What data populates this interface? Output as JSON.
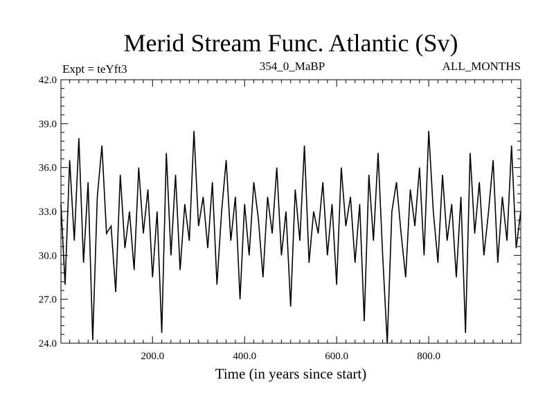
{
  "chart_data": {
    "type": "line",
    "title": "Merid Stream Func. Atlantic (Sv)",
    "header_left": "Expt = teYft3",
    "header_center": "354_0_MaBP",
    "header_right": "ALL_MONTHS",
    "xlabel": "Time (in years since start)",
    "ylabel": "",
    "xlim": [
      1,
      1000
    ],
    "ylim": [
      24.0,
      42.0
    ],
    "x_ticks": [
      200.0,
      400.0,
      600.0,
      800.0
    ],
    "x_tick_labels": [
      "200.0",
      "400.0",
      "600.0",
      "800.0"
    ],
    "y_ticks": [
      24.0,
      27.0,
      30.0,
      33.0,
      36.0,
      39.0,
      42.0
    ],
    "y_tick_labels": [
      "24.0",
      "27.0",
      "30.0",
      "33.0",
      "36.0",
      "39.0",
      "42.0"
    ],
    "grid": false,
    "series": [
      {
        "color": "#000000",
        "x": [
          1,
          10,
          20,
          30,
          40,
          50,
          60,
          70,
          80,
          90,
          100,
          110,
          120,
          130,
          140,
          150,
          160,
          170,
          180,
          190,
          200,
          210,
          220,
          230,
          240,
          250,
          260,
          270,
          280,
          290,
          300,
          310,
          320,
          330,
          340,
          350,
          360,
          370,
          380,
          390,
          400,
          410,
          420,
          430,
          440,
          450,
          460,
          470,
          480,
          490,
          500,
          510,
          520,
          530,
          540,
          550,
          560,
          570,
          580,
          590,
          600,
          610,
          620,
          630,
          640,
          650,
          660,
          670,
          680,
          690,
          700,
          710,
          720,
          730,
          740,
          750,
          760,
          770,
          780,
          790,
          800,
          810,
          820,
          830,
          840,
          850,
          860,
          870,
          880,
          890,
          900,
          910,
          920,
          930,
          940,
          950,
          960,
          970,
          980,
          990,
          1000
        ],
        "y": [
          33.5,
          28.0,
          36.5,
          31.0,
          38.0,
          29.5,
          35.0,
          24.2,
          34.0,
          37.5,
          31.5,
          32.0,
          27.5,
          35.5,
          30.5,
          33.0,
          29.0,
          36.0,
          31.5,
          34.5,
          28.5,
          33.0,
          24.7,
          37.0,
          30.0,
          35.5,
          29.0,
          33.5,
          31.0,
          38.5,
          32.0,
          34.0,
          30.5,
          35.0,
          28.0,
          33.0,
          36.5,
          31.0,
          34.0,
          27.0,
          33.5,
          30.0,
          35.0,
          32.5,
          28.5,
          34.0,
          31.5,
          36.0,
          30.0,
          33.0,
          26.5,
          34.5,
          31.0,
          37.5,
          29.5,
          33.0,
          31.5,
          35.0,
          30.0,
          33.5,
          28.0,
          36.0,
          32.0,
          34.0,
          29.5,
          33.5,
          25.5,
          35.5,
          31.0,
          37.0,
          30.0,
          24.0,
          33.0,
          35.0,
          31.5,
          28.5,
          34.5,
          32.0,
          36.0,
          30.0,
          38.5,
          33.0,
          29.5,
          35.5,
          31.0,
          33.5,
          28.5,
          34.0,
          24.7,
          37.0,
          31.5,
          35.0,
          30.0,
          33.0,
          36.5,
          29.5,
          34.0,
          31.0,
          37.5,
          30.5,
          33.0
        ]
      }
    ]
  }
}
